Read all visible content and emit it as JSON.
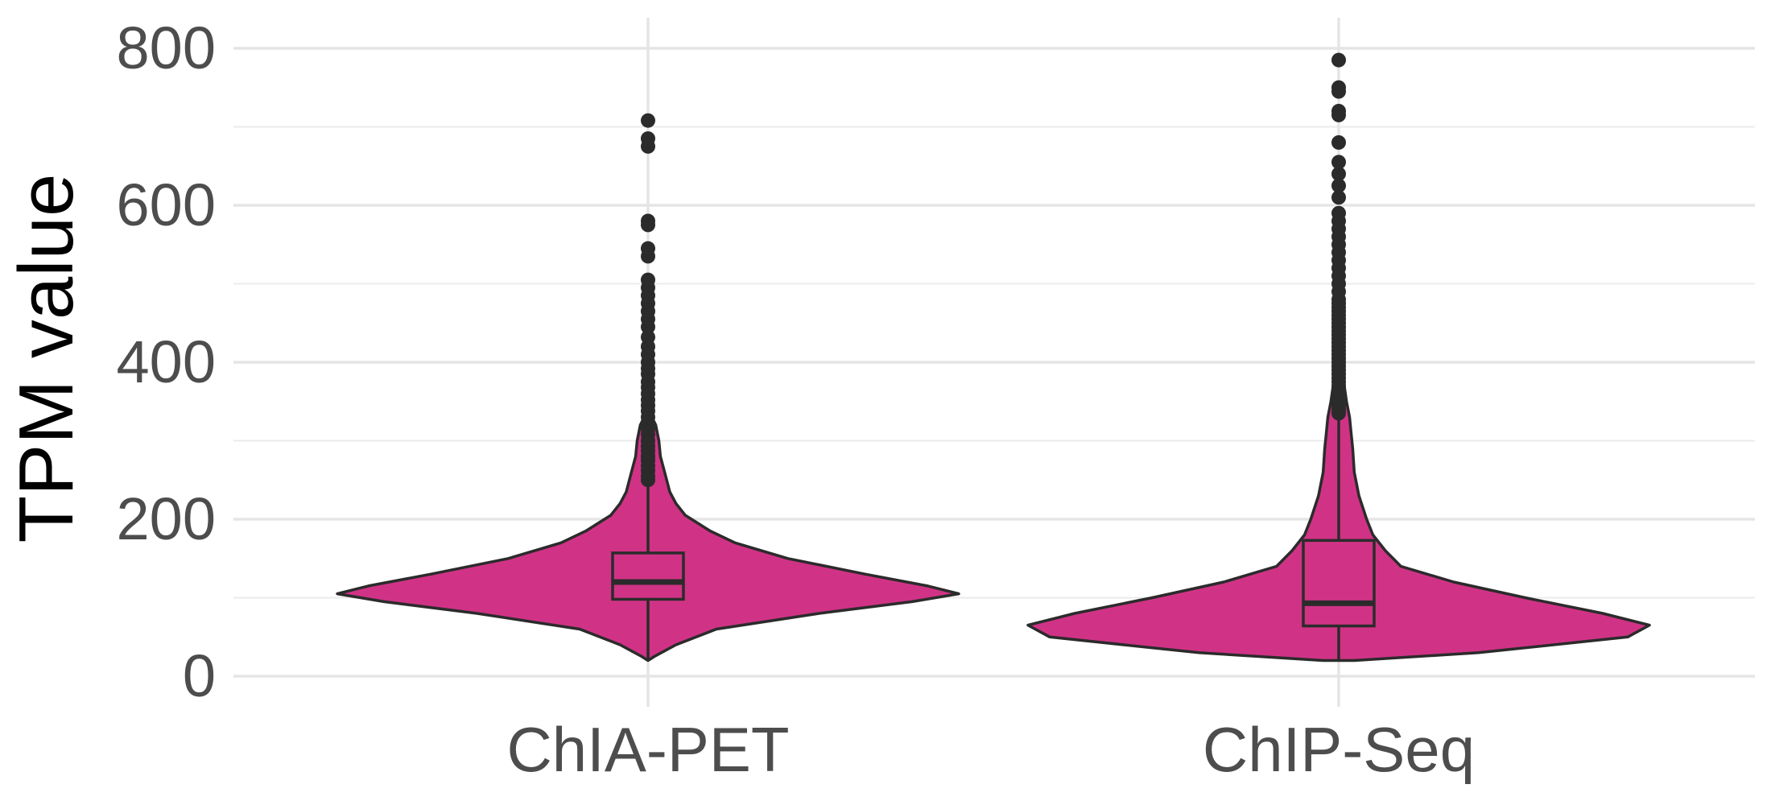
{
  "chart_data": {
    "type": "violin",
    "title": "",
    "xlabel": "",
    "ylabel": "TPM value",
    "ylim": [
      -10,
      810
    ],
    "y_ticks": [
      0,
      200,
      400,
      600,
      800
    ],
    "y_tick_labels": [
      "0",
      "200",
      "400",
      "600",
      "800"
    ],
    "categories": [
      "ChIA-PET",
      "ChIP-Seq"
    ],
    "grid": true,
    "legend": "none",
    "fill_color": "#d03386",
    "outline_color": "#2b2b2b",
    "series": [
      {
        "category": "ChIA-PET",
        "box": {
          "min": 20,
          "q1": 98,
          "median": 120,
          "q3": 157,
          "whisker_high": 248
        },
        "outliers": [
          250,
          255,
          262,
          268,
          275,
          280,
          287,
          293,
          300,
          308,
          315,
          322,
          330,
          338,
          345,
          352,
          360,
          368,
          375,
          385,
          392,
          400,
          410,
          420,
          432,
          445,
          455,
          465,
          475,
          485,
          495,
          505,
          535,
          545,
          575,
          580,
          675,
          685,
          708
        ],
        "density": [
          [
            20,
            0.0
          ],
          [
            25,
            0.02
          ],
          [
            40,
            0.09
          ],
          [
            60,
            0.22
          ],
          [
            80,
            0.55
          ],
          [
            95,
            0.85
          ],
          [
            105,
            1.0
          ],
          [
            115,
            0.9
          ],
          [
            130,
            0.7
          ],
          [
            150,
            0.45
          ],
          [
            170,
            0.28
          ],
          [
            185,
            0.2
          ],
          [
            195,
            0.16
          ],
          [
            205,
            0.12
          ],
          [
            220,
            0.09
          ],
          [
            235,
            0.07
          ],
          [
            250,
            0.06
          ],
          [
            265,
            0.05
          ],
          [
            280,
            0.04
          ],
          [
            300,
            0.035
          ],
          [
            320,
            0.025
          ],
          [
            340,
            0.0
          ]
        ]
      },
      {
        "category": "ChIP-Seq",
        "box": {
          "min": 20,
          "q1": 64,
          "median": 93,
          "q3": 173,
          "whisker_high": 332
        },
        "outliers": [
          335,
          340,
          345,
          350,
          355,
          360,
          365,
          370,
          375,
          380,
          385,
          390,
          395,
          400,
          405,
          410,
          415,
          420,
          425,
          430,
          435,
          440,
          445,
          450,
          455,
          460,
          465,
          470,
          475,
          480,
          490,
          500,
          510,
          520,
          530,
          540,
          550,
          560,
          570,
          580,
          590,
          610,
          625,
          640,
          655,
          680,
          715,
          720,
          745,
          750,
          785
        ],
        "density": [
          [
            20,
            0.05
          ],
          [
            30,
            0.45
          ],
          [
            50,
            0.93
          ],
          [
            65,
            1.0
          ],
          [
            80,
            0.85
          ],
          [
            100,
            0.6
          ],
          [
            120,
            0.37
          ],
          [
            140,
            0.2
          ],
          [
            160,
            0.15
          ],
          [
            180,
            0.11
          ],
          [
            200,
            0.09
          ],
          [
            230,
            0.065
          ],
          [
            260,
            0.05
          ],
          [
            290,
            0.045
          ],
          [
            310,
            0.04
          ],
          [
            330,
            0.035
          ],
          [
            350,
            0.025
          ],
          [
            370,
            0.018
          ],
          [
            390,
            0.012
          ],
          [
            400,
            0.0
          ]
        ]
      }
    ]
  }
}
